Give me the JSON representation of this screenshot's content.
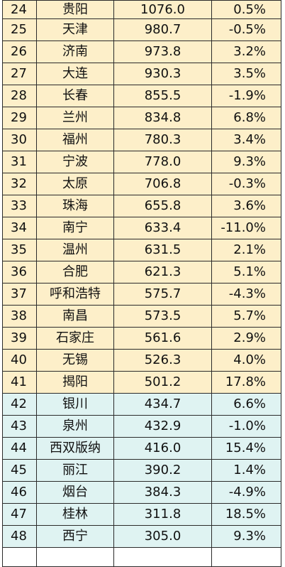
{
  "tiers": {
    "tier_a_color": "#fdefc9",
    "tier_b_color": "#dff3f2"
  },
  "rows": [
    {
      "rank": "24",
      "city": "贵阳",
      "value": "1076.0",
      "growth": "0.5%"
    },
    {
      "rank": "25",
      "city": "天津",
      "value": "980.7",
      "growth": "-0.5%"
    },
    {
      "rank": "26",
      "city": "济南",
      "value": "973.8",
      "growth": "3.2%"
    },
    {
      "rank": "27",
      "city": "大连",
      "value": "930.3",
      "growth": "3.5%"
    },
    {
      "rank": "28",
      "city": "长春",
      "value": "855.5",
      "growth": "-1.9%"
    },
    {
      "rank": "29",
      "city": "兰州",
      "value": "834.8",
      "growth": "6.8%"
    },
    {
      "rank": "30",
      "city": "福州",
      "value": "780.3",
      "growth": "3.4%"
    },
    {
      "rank": "31",
      "city": "宁波",
      "value": "778.0",
      "growth": "9.3%"
    },
    {
      "rank": "32",
      "city": "太原",
      "value": "706.8",
      "growth": "-0.3%"
    },
    {
      "rank": "33",
      "city": "珠海",
      "value": "655.8",
      "growth": "3.6%"
    },
    {
      "rank": "34",
      "city": "南宁",
      "value": "633.4",
      "growth": "-11.0%"
    },
    {
      "rank": "35",
      "city": "温州",
      "value": "631.5",
      "growth": "2.1%"
    },
    {
      "rank": "36",
      "city": "合肥",
      "value": "621.3",
      "growth": "5.1%"
    },
    {
      "rank": "37",
      "city": "呼和浩特",
      "value": "575.7",
      "growth": "-4.3%"
    },
    {
      "rank": "38",
      "city": "南昌",
      "value": "573.5",
      "growth": "5.7%"
    },
    {
      "rank": "39",
      "city": "石家庄",
      "value": "561.6",
      "growth": "2.9%"
    },
    {
      "rank": "40",
      "city": "无锡",
      "value": "526.3",
      "growth": "4.0%"
    },
    {
      "rank": "41",
      "city": "揭阳",
      "value": "501.2",
      "growth": "17.8%"
    },
    {
      "rank": "42",
      "city": "银川",
      "value": "434.7",
      "growth": "6.6%"
    },
    {
      "rank": "43",
      "city": "泉州",
      "value": "432.9",
      "growth": "-1.0%"
    },
    {
      "rank": "44",
      "city": "西双版纳",
      "value": "416.0",
      "growth": "15.4%"
    },
    {
      "rank": "45",
      "city": "丽江",
      "value": "390.2",
      "growth": "1.4%"
    },
    {
      "rank": "46",
      "city": "烟台",
      "value": "384.3",
      "growth": "-4.9%"
    },
    {
      "rank": "47",
      "city": "桂林",
      "value": "311.8",
      "growth": "18.5%"
    },
    {
      "rank": "48",
      "city": "西宁",
      "value": "305.0",
      "growth": "9.3%"
    }
  ]
}
